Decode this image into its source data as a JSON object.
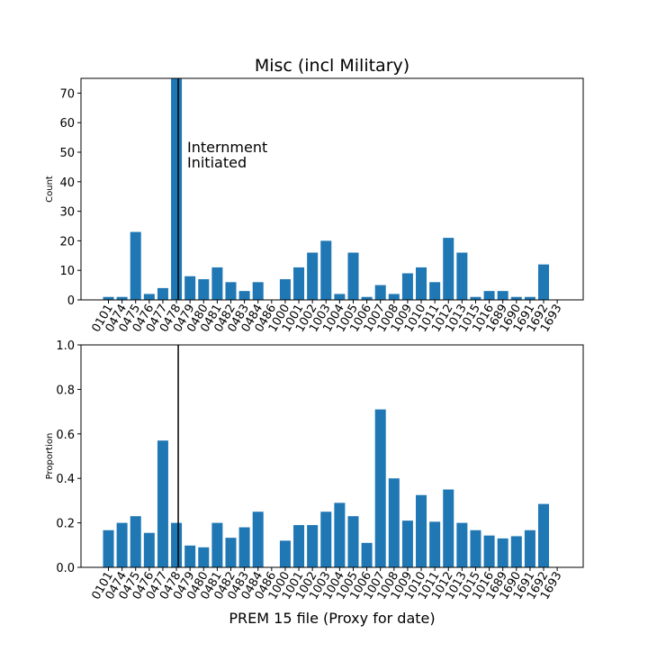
{
  "chart_data": [
    {
      "type": "bar",
      "title": "Misc (incl Military)",
      "xlabel": "",
      "ylabel": "Count",
      "ylim": [
        0,
        75
      ],
      "yticks": [
        0,
        10,
        20,
        30,
        40,
        50,
        60,
        70
      ],
      "categories": [
        "0101",
        "0474",
        "0475",
        "0476",
        "0477",
        "0478",
        "0479",
        "0480",
        "0481",
        "0482",
        "0483",
        "0484",
        "0486",
        "1000",
        "1001",
        "1002",
        "1003",
        "1004",
        "1005",
        "1006",
        "1007",
        "1008",
        "1009",
        "1010",
        "1011",
        "1012",
        "1013",
        "1015",
        "1016",
        "1689",
        "1690",
        "1691",
        "1692",
        "1693"
      ],
      "values": [
        1,
        1,
        23,
        2,
        4,
        75,
        8,
        7,
        11,
        6,
        3,
        6,
        0,
        7,
        11,
        16,
        20,
        2,
        16,
        1,
        5,
        2,
        9,
        11,
        6,
        21,
        16,
        1,
        3,
        3,
        1,
        1,
        12,
        0
      ],
      "color": "#1f77b4",
      "vline_category": "0478",
      "annotation": [
        "Internment",
        "Initiated"
      ]
    },
    {
      "type": "bar",
      "title": "",
      "xlabel": "PREM 15 file (Proxy for date)",
      "ylabel": "Proportion",
      "ylim": [
        0,
        1.0
      ],
      "yticks": [
        "0.0",
        "0.2",
        "0.4",
        "0.6",
        "0.8",
        "1.0"
      ],
      "categories": [
        "0101",
        "0474",
        "0475",
        "0476",
        "0477",
        "0478",
        "0479",
        "0480",
        "0481",
        "0482",
        "0483",
        "0484",
        "0486",
        "1000",
        "1001",
        "1002",
        "1003",
        "1004",
        "1005",
        "1006",
        "1007",
        "1008",
        "1009",
        "1010",
        "1011",
        "1012",
        "1013",
        "1015",
        "1016",
        "1689",
        "1690",
        "1691",
        "1692",
        "1693"
      ],
      "values": [
        0.167,
        0.2,
        0.23,
        0.155,
        0.57,
        0.2,
        0.098,
        0.09,
        0.2,
        0.133,
        0.18,
        0.25,
        0,
        0.12,
        0.19,
        0.19,
        0.25,
        0.29,
        0.23,
        0.11,
        0.71,
        0.4,
        0.21,
        0.325,
        0.205,
        0.35,
        0.2,
        0.167,
        0.143,
        0.13,
        0.14,
        0.167,
        0.285,
        0
      ],
      "color": "#1f77b4",
      "vline_category": "0478"
    }
  ]
}
